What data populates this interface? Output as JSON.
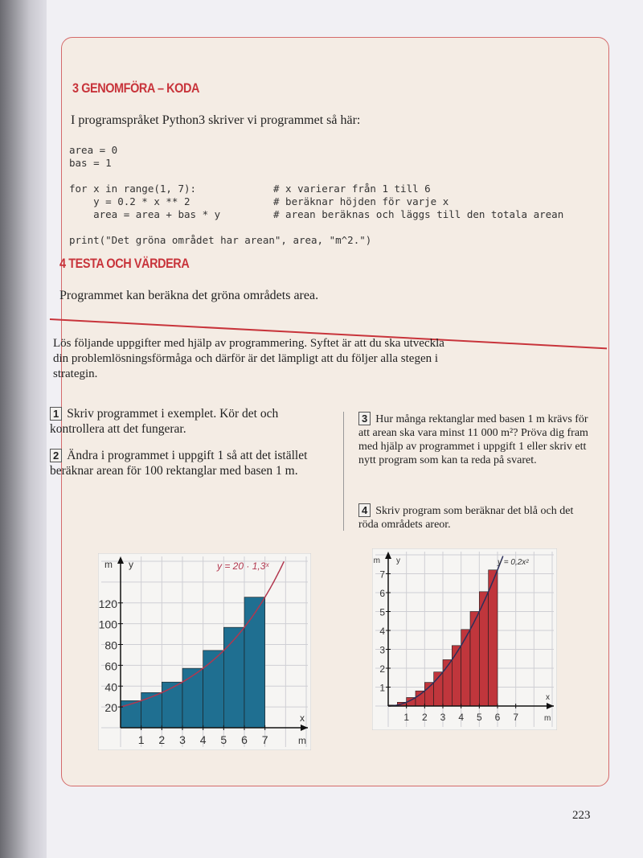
{
  "section3": {
    "heading": "3 GENOMFÖRA – KODA",
    "intro": "I programspråket Python3 skriver vi programmet så här:",
    "code_lines": [
      "area = 0",
      "bas = 1",
      "",
      "for x in range(1, 7):",
      "    y = 0.2 * x ** 2",
      "    area = area + bas * y",
      "print(\"Det gröna området har arean\", area, \"m^2.\")"
    ],
    "comments": [
      "# x varierar från 1 till 6",
      "# beräknar höjden för varje x",
      "# arean beräknas och läggs till den totala arean"
    ]
  },
  "section4": {
    "heading": "4 TESTA OCH VÄRDERA",
    "text": "Programmet kan beräkna det gröna områdets area."
  },
  "instructions": "Lös följande uppgifter med hjälp av programmering. Syftet är att du ska utveckla din problemlösningsförmåga och därför är det lämpligt att du följer alla stegen i strategin.",
  "tasks": [
    {
      "number": "1",
      "text": "Skriv programmet i exemplet. Kör det och kontrollera att det fungerar."
    },
    {
      "number": "2",
      "text": "Ändra i programmet i uppgift 1 så att det istället beräknar arean för 100 rektanglar med basen 1 m."
    },
    {
      "number": "3",
      "text": "Hur många rektanglar med basen 1 m krävs för att arean ska vara minst 11 000 m²? Pröva dig fram med hjälp av programmet i uppgift 1 eller skriv ett nytt program som kan ta reda på svaret."
    },
    {
      "number": "4",
      "text": "Skriv program som beräknar det blå och det röda områdets areor."
    }
  ],
  "page_number": "223",
  "chart_data": [
    {
      "type": "bar",
      "function_label": "y = 20 · 1,3ˣ",
      "xlabel": "x",
      "xunit": "m",
      "ylabel": "y",
      "yunit": "m",
      "bar_width": 1,
      "x": [
        0,
        1,
        2,
        3,
        4,
        5,
        6
      ],
      "values": [
        26,
        33.8,
        43.9,
        57.1,
        74.3,
        96.5,
        125.5
      ],
      "x_ticks": [
        1,
        2,
        3,
        4,
        5,
        6,
        7
      ],
      "y_ticks": [
        20,
        40,
        60,
        80,
        100,
        120
      ],
      "xlim": [
        0,
        9
      ],
      "ylim": [
        0,
        160
      ],
      "grid": true,
      "bar_color": "#1f6f91",
      "curve_color": "#b2374f"
    },
    {
      "type": "bar",
      "function_label": "y = 0,2x²",
      "xlabel": "x",
      "xunit": "m",
      "ylabel": "y",
      "yunit": "m",
      "bar_width": 0.5,
      "x": [
        0,
        0.5,
        1,
        1.5,
        2,
        2.5,
        3,
        3.5,
        4,
        4.5,
        5,
        5.5
      ],
      "values": [
        0.05,
        0.2,
        0.45,
        0.8,
        1.25,
        1.8,
        2.45,
        3.2,
        4.05,
        5,
        6.05,
        7.2
      ],
      "x_ticks": [
        1,
        2,
        3,
        4,
        5,
        6,
        7
      ],
      "y_ticks": [
        1,
        2,
        3,
        4,
        5,
        6,
        7
      ],
      "xlim": [
        0,
        9
      ],
      "ylim": [
        0,
        8
      ],
      "grid": true,
      "bar_color": "#c0363c",
      "curve_color": "#2b2f5a"
    }
  ]
}
